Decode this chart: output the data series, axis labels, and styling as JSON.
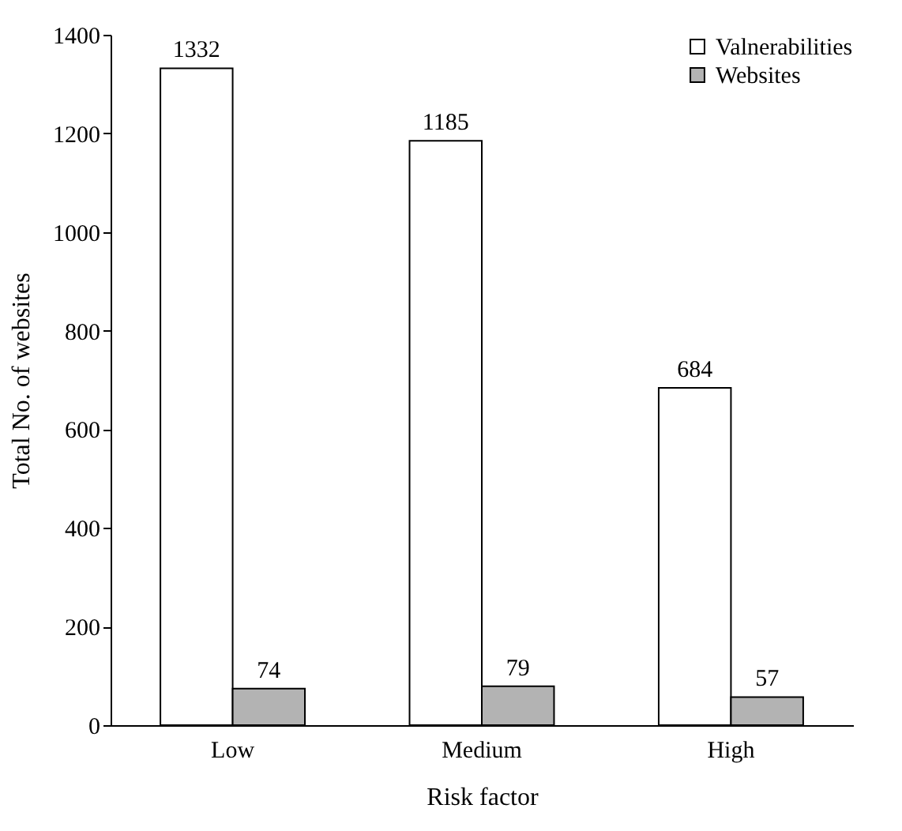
{
  "chart_data": {
    "type": "bar",
    "xlabel": "Risk factor",
    "ylabel": "Total No. of websites",
    "categories": [
      "Low",
      "Medium",
      "High"
    ],
    "series": [
      {
        "name": "Valnerabilities",
        "color": "#ffffff",
        "values": [
          1332,
          1185,
          684
        ]
      },
      {
        "name": "Websites",
        "color": "#b3b3b3",
        "values": [
          74,
          79,
          57
        ]
      }
    ],
    "ylim": [
      0,
      1400
    ],
    "yticks": [
      0,
      200,
      400,
      600,
      800,
      1000,
      1200,
      1400
    ],
    "legend": "top right",
    "data_labels": true
  }
}
